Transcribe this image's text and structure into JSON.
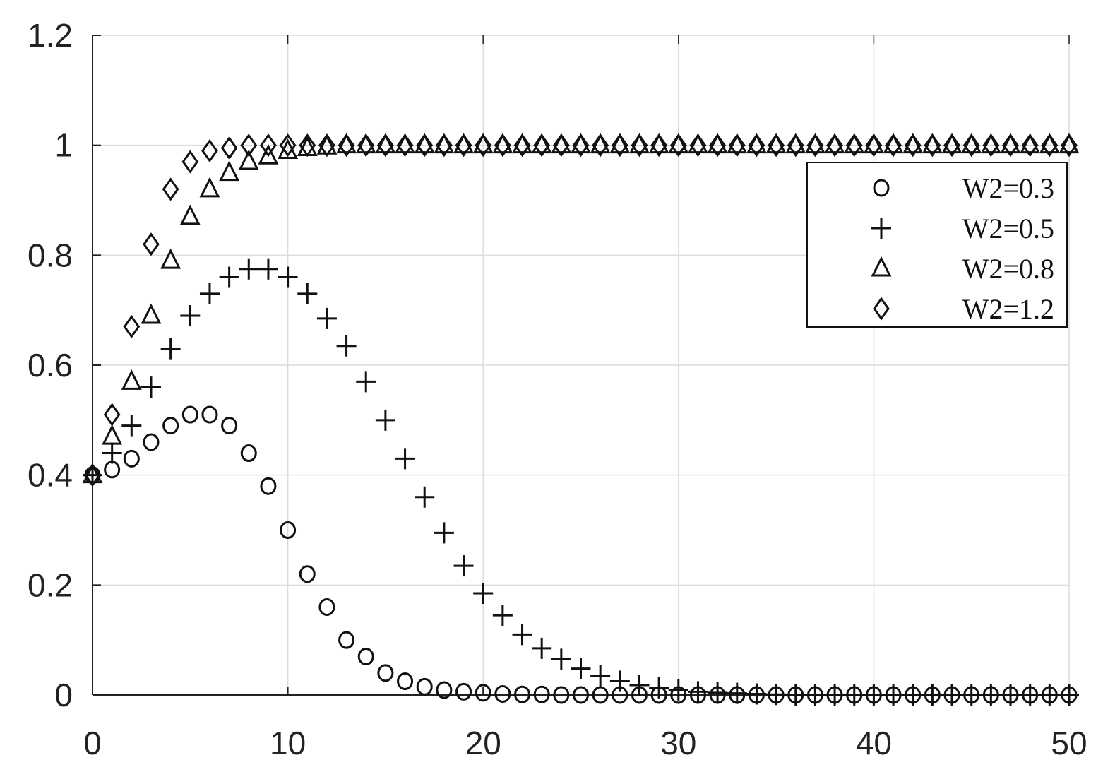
{
  "chart_data": {
    "type": "scatter",
    "title": "",
    "xlabel": "",
    "ylabel": "",
    "xlim": [
      0,
      50
    ],
    "ylim": [
      0,
      1.2
    ],
    "xticks": [
      "0",
      "10",
      "20",
      "30",
      "40",
      "50"
    ],
    "yticks": [
      "0",
      "0.2",
      "0.4",
      "0.6",
      "0.8",
      "1",
      "1.2"
    ],
    "grid": true,
    "legend_position": "top-right",
    "x": [
      0,
      1,
      2,
      3,
      4,
      5,
      6,
      7,
      8,
      9,
      10,
      11,
      12,
      13,
      14,
      15,
      16,
      17,
      18,
      19,
      20,
      21,
      22,
      23,
      24,
      25,
      26,
      27,
      28,
      29,
      30,
      31,
      32,
      33,
      34,
      35,
      36,
      37,
      38,
      39,
      40,
      41,
      42,
      43,
      44,
      45,
      46,
      47,
      48,
      49,
      50
    ],
    "series": [
      {
        "name": "W2=0.3",
        "marker": "circle",
        "values": [
          0.4,
          0.41,
          0.43,
          0.46,
          0.49,
          0.51,
          0.51,
          0.49,
          0.44,
          0.38,
          0.3,
          0.22,
          0.16,
          0.1,
          0.07,
          0.04,
          0.025,
          0.015,
          0.009,
          0.006,
          0.004,
          0.002,
          0.001,
          0.001,
          0,
          0,
          0,
          0,
          0,
          0,
          0,
          0,
          0,
          0,
          0,
          0,
          0,
          0,
          0,
          0,
          0,
          0,
          0,
          0,
          0,
          0,
          0,
          0,
          0,
          0,
          0
        ]
      },
      {
        "name": "W2=0.5",
        "marker": "plus",
        "values": [
          0.4,
          0.44,
          0.49,
          0.56,
          0.63,
          0.69,
          0.73,
          0.76,
          0.775,
          0.775,
          0.76,
          0.73,
          0.685,
          0.635,
          0.57,
          0.5,
          0.43,
          0.36,
          0.295,
          0.235,
          0.185,
          0.145,
          0.11,
          0.085,
          0.065,
          0.048,
          0.035,
          0.025,
          0.018,
          0.013,
          0.009,
          0.006,
          0.004,
          0.003,
          0.002,
          0.001,
          0,
          0,
          0,
          0,
          0,
          0,
          0,
          0,
          0,
          0,
          0,
          0,
          0,
          0,
          0
        ]
      },
      {
        "name": "W2=0.8",
        "marker": "triangle",
        "values": [
          0.4,
          0.47,
          0.57,
          0.69,
          0.79,
          0.87,
          0.92,
          0.95,
          0.97,
          0.98,
          0.99,
          0.995,
          0.998,
          1,
          1,
          1,
          1,
          1,
          1,
          1,
          1,
          1,
          1,
          1,
          1,
          1,
          1,
          1,
          1,
          1,
          1,
          1,
          1,
          1,
          1,
          1,
          1,
          1,
          1,
          1,
          1,
          1,
          1,
          1,
          1,
          1,
          1,
          1,
          1,
          1,
          1
        ]
      },
      {
        "name": "W2=1.2",
        "marker": "diamond",
        "values": [
          0.4,
          0.51,
          0.67,
          0.82,
          0.92,
          0.97,
          0.99,
          0.995,
          1,
          1,
          1,
          1,
          1,
          1,
          1,
          1,
          1,
          1,
          1,
          1,
          1,
          1,
          1,
          1,
          1,
          1,
          1,
          1,
          1,
          1,
          1,
          1,
          1,
          1,
          1,
          1,
          1,
          1,
          1,
          1,
          1,
          1,
          1,
          1,
          1,
          1,
          1,
          1,
          1,
          1,
          1
        ]
      }
    ]
  }
}
